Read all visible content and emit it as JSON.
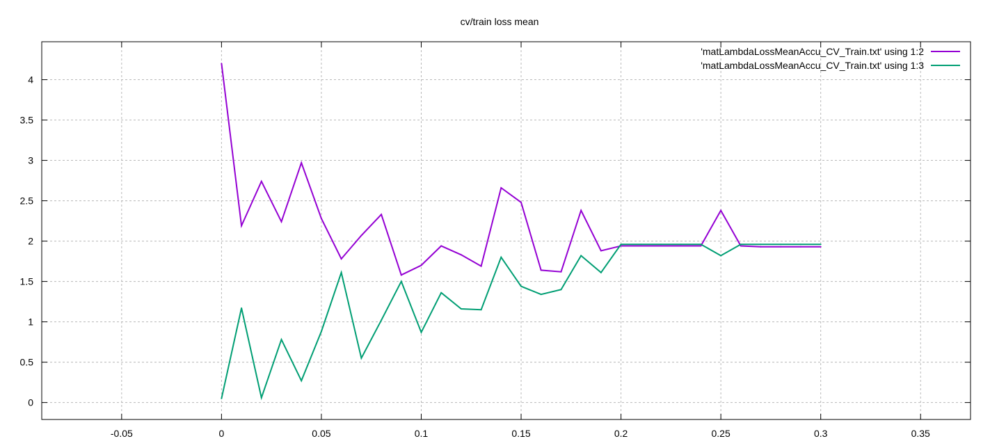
{
  "chart_data": {
    "type": "line",
    "title": "cv/train loss mean",
    "xlabel": "",
    "ylabel": "",
    "xlim": [
      -0.09,
      0.375
    ],
    "ylim": [
      -0.21,
      4.47
    ],
    "grid": true,
    "legend_position": "top-right",
    "x_ticks": [
      {
        "value": -0.05,
        "label": "-0.05"
      },
      {
        "value": 0,
        "label": "0"
      },
      {
        "value": 0.05,
        "label": "0.05"
      },
      {
        "value": 0.1,
        "label": "0.1"
      },
      {
        "value": 0.15,
        "label": "0.15"
      },
      {
        "value": 0.2,
        "label": "0.2"
      },
      {
        "value": 0.25,
        "label": "0.25"
      },
      {
        "value": 0.3,
        "label": "0.3"
      },
      {
        "value": 0.35,
        "label": "0.35"
      }
    ],
    "y_ticks": [
      {
        "value": 0,
        "label": "0"
      },
      {
        "value": 0.5,
        "label": "0.5"
      },
      {
        "value": 1,
        "label": "1"
      },
      {
        "value": 1.5,
        "label": "1.5"
      },
      {
        "value": 2,
        "label": "2"
      },
      {
        "value": 2.5,
        "label": "2.5"
      },
      {
        "value": 3,
        "label": "3"
      },
      {
        "value": 3.5,
        "label": "3.5"
      },
      {
        "value": 4,
        "label": "4"
      }
    ],
    "x": [
      0,
      0.01,
      0.02,
      0.03,
      0.04,
      0.05,
      0.06,
      0.07,
      0.08,
      0.09,
      0.1,
      0.11,
      0.12,
      0.13,
      0.14,
      0.15,
      0.16,
      0.17,
      0.18,
      0.19,
      0.2,
      0.21,
      0.22,
      0.23,
      0.24,
      0.25,
      0.26,
      0.27,
      0.28,
      0.29,
      0.3
    ],
    "series": [
      {
        "name": "'matLambdaLossMeanAccu_CV_Train.txt' using 1:2",
        "color": "#9400d3",
        "values": [
          4.2,
          2.19,
          2.74,
          2.24,
          2.97,
          2.28,
          1.78,
          2.07,
          2.33,
          1.58,
          1.7,
          1.94,
          1.83,
          1.69,
          2.66,
          2.48,
          1.64,
          1.62,
          2.38,
          1.88,
          1.94,
          1.94,
          1.94,
          1.94,
          1.94,
          2.38,
          1.94,
          1.93,
          1.93,
          1.93,
          1.93
        ]
      },
      {
        "name": "'matLambdaLossMeanAccu_CV_Train.txt' using 1:3",
        "color": "#009e73",
        "values": [
          0.05,
          1.17,
          0.06,
          0.78,
          0.27,
          0.88,
          1.61,
          0.55,
          1.02,
          1.5,
          0.87,
          1.36,
          1.16,
          1.15,
          1.8,
          1.44,
          1.34,
          1.4,
          1.82,
          1.61,
          1.96,
          1.96,
          1.96,
          1.96,
          1.96,
          1.82,
          1.96,
          1.96,
          1.96,
          1.96,
          1.96
        ]
      }
    ]
  }
}
